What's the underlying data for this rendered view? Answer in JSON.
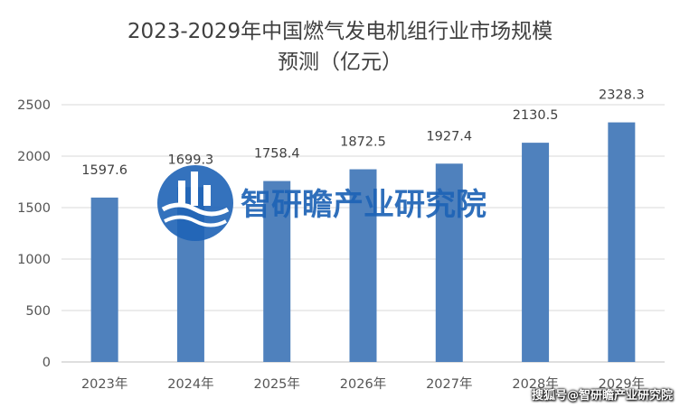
{
  "chart_data": {
    "type": "bar",
    "title": "2023-2029年中国燃气发电机组行业市场规模预测（亿元）",
    "title_lines": [
      "2023-2029年中国燃气发电机组行业市场规模",
      "预测（亿元）"
    ],
    "categories": [
      "2023年",
      "2024年",
      "2025年",
      "2026年",
      "2027年",
      "2028年",
      "2029年"
    ],
    "values": [
      1597.6,
      1699.3,
      1758.4,
      1872.5,
      1927.4,
      2130.5,
      2328.3
    ],
    "value_labels": [
      "1597.6",
      "1699.3",
      "1758.4",
      "1872.5",
      "1927.4",
      "2130.5",
      "2328.3"
    ],
    "ylim": [
      0,
      2500
    ],
    "yticks": [
      0,
      500,
      1000,
      1500,
      2000,
      2500
    ],
    "grid": true,
    "bar_color": "#4f81bd",
    "grid_color": "#d9d9d9"
  },
  "watermark": {
    "text": "智研瞻产业研究院",
    "color": "#1e63b6"
  },
  "credit": "搜狐号@智研瞻产业研究院"
}
